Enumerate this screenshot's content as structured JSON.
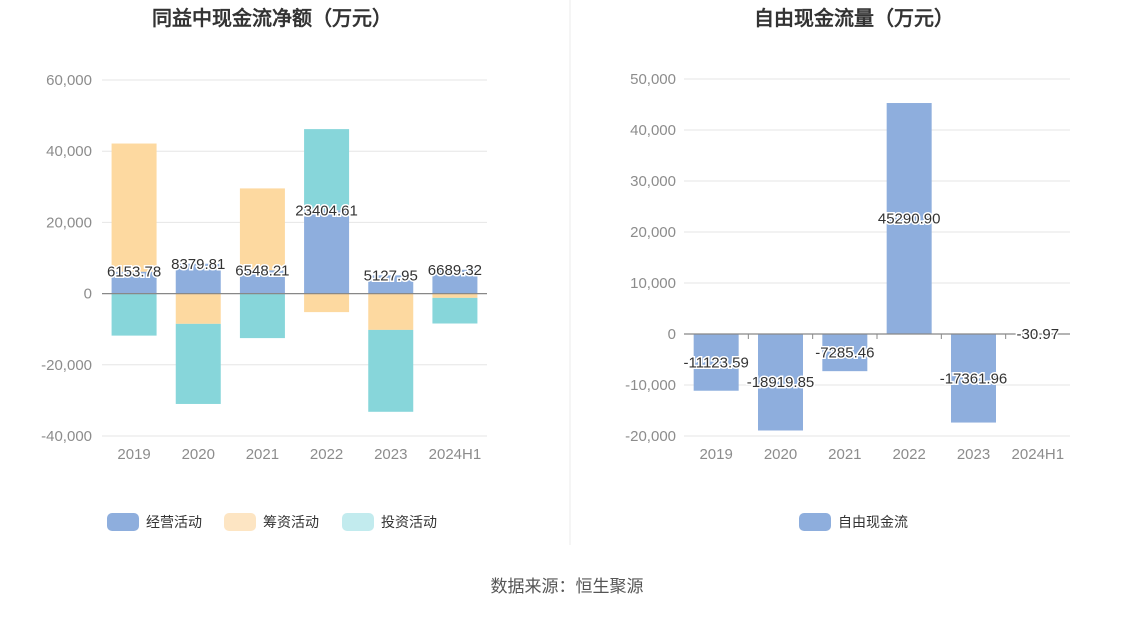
{
  "source_label": "数据来源：恒生聚源",
  "colors": {
    "operating": "#8eaedd",
    "financing": "#fdd9a0",
    "investing": "#87d6da",
    "free_cash": "#8eaedd",
    "investing_legend": "#c2ebee",
    "financing_legend": "#fde5c3",
    "grid": "#e6e6e6",
    "axis_text": "#8c8c8c",
    "title": "#333333",
    "label": "#333333"
  },
  "chart_data": [
    {
      "type": "bar",
      "stacked": true,
      "title": "同益中现金流净额（万元）",
      "categories": [
        "2019",
        "2020",
        "2021",
        "2022",
        "2023",
        "2024H1"
      ],
      "ylim": [
        -40000,
        60000
      ],
      "yticks": [
        60000,
        40000,
        20000,
        0,
        -20000,
        -40000
      ],
      "ytick_labels": [
        "60,000",
        "40,000",
        "20,000",
        "0",
        "-20,000",
        "-40,000"
      ],
      "grid": true,
      "legend_position": "bottom",
      "series": [
        {
          "name": "经营活动",
          "key": "operating",
          "values": [
            6153.78,
            8379.81,
            6548.21,
            23404.61,
            5127.95,
            6689.32
          ]
        },
        {
          "name": "筹资活动",
          "key": "financing",
          "values": [
            36000,
            -8500,
            23000,
            -5200,
            -10200,
            -1200
          ]
        },
        {
          "name": "投资活动",
          "key": "investing",
          "values": [
            -11800,
            -22500,
            -12500,
            22800,
            -23000,
            -7200
          ]
        }
      ],
      "data_labels": [
        "6153.78",
        "8379.81",
        "6548.21",
        "23404.61",
        "5127.95",
        "6689.32"
      ]
    },
    {
      "type": "bar",
      "title": "自由现金流量（万元）",
      "categories": [
        "2019",
        "2020",
        "2021",
        "2022",
        "2023",
        "2024H1"
      ],
      "ylim": [
        -20000,
        50000
      ],
      "yticks": [
        50000,
        40000,
        30000,
        20000,
        10000,
        0,
        -10000,
        -20000
      ],
      "ytick_labels": [
        "50,000",
        "40,000",
        "30,000",
        "20,000",
        "10,000",
        "0",
        "-10,000",
        "-20,000"
      ],
      "grid": true,
      "legend_position": "bottom",
      "series": [
        {
          "name": "自由现金流",
          "key": "free_cash",
          "values": [
            -11123.59,
            -18919.85,
            -7285.46,
            45290.9,
            -17361.96,
            -30.97
          ]
        }
      ],
      "data_labels": [
        "-11123.59",
        "-18919.85",
        "-7285.46",
        "45290.90",
        "-17361.96",
        "-30.97"
      ]
    }
  ]
}
